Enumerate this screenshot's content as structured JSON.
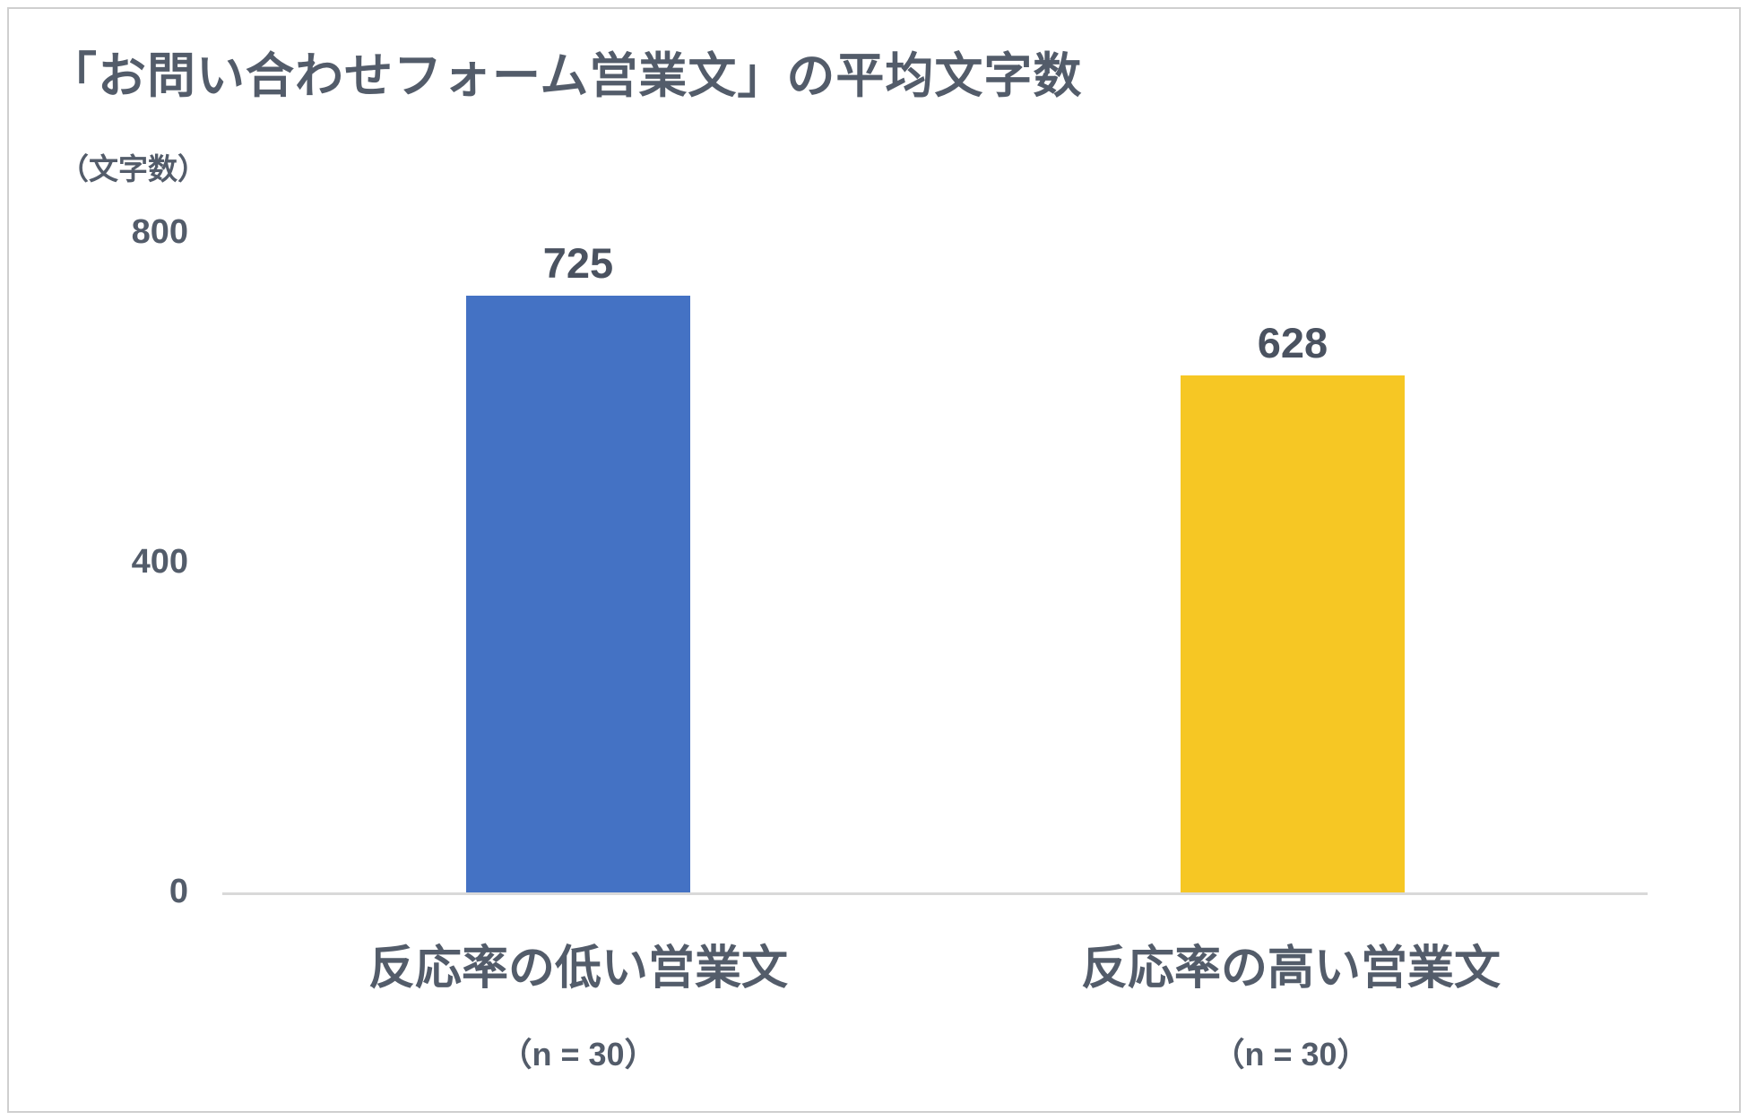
{
  "chart_data": {
    "type": "bar",
    "title": "「お問い合わせフォーム営業文」の平均文字数",
    "unit_label": "（文字数）",
    "categories": [
      "反応率の低い営業文",
      "反応率の高い営業文"
    ],
    "values": [
      725,
      628
    ],
    "n_labels": [
      "（n = 30）",
      "（n = 30）"
    ],
    "colors": [
      "#4472C4",
      "#F6C724"
    ],
    "yticks": [
      "800",
      "400",
      "0"
    ],
    "ylim": [
      0,
      800
    ],
    "grid": false,
    "legend": false,
    "axis_line_color": "#D9D9D9",
    "text_color": "#535C6A",
    "xlabel": "",
    "ylabel": "文字数"
  }
}
